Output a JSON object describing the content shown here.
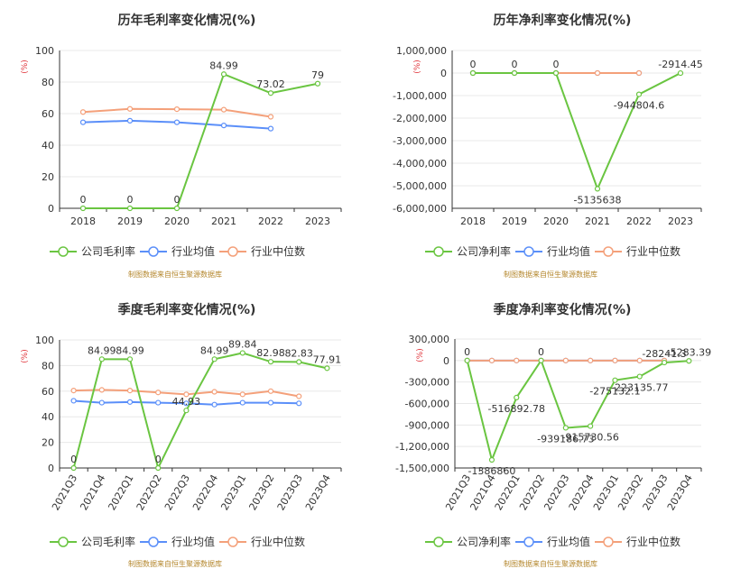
{
  "colors": {
    "company": "#6ac541",
    "industry_avg": "#5b8ff9",
    "industry_median": "#f4a07a",
    "axis_unit": "#e0343a",
    "source": "#b4872d",
    "grid": "#e8e8e8",
    "text": "#333333"
  },
  "legend_labels": {
    "gross": [
      "公司毛利率",
      "行业均值",
      "行业中位数"
    ],
    "net": [
      "公司净利率",
      "行业均值",
      "行业中位数"
    ]
  },
  "source_note": "制图数据来自恒生聚源数据库",
  "chart_data": [
    {
      "type": "line",
      "title": "历年毛利率变化情况(%)",
      "unit_label": "(%)",
      "categories": [
        "2018",
        "2019",
        "2020",
        "2021",
        "2022",
        "2023"
      ],
      "ylim": [
        0,
        100
      ],
      "yticks": [
        0,
        20,
        40,
        60,
        80,
        100
      ],
      "ytick_labels": [
        "0",
        "20",
        "40",
        "60",
        "80",
        "100"
      ],
      "rotate_x_labels": false,
      "series": [
        {
          "name": "公司毛利率",
          "values": [
            0,
            0,
            0,
            84.99,
            73.02,
            79
          ],
          "labels": [
            "0",
            "0",
            "0",
            "84.99",
            "73.02",
            "79"
          ]
        },
        {
          "name": "行业均值",
          "values": [
            54.5,
            55.5,
            54.5,
            52.5,
            50.5,
            null
          ]
        },
        {
          "name": "行业中位数",
          "values": [
            61,
            63,
            62.8,
            62.5,
            58,
            null
          ]
        }
      ]
    },
    {
      "type": "line",
      "title": "历年净利率变化情况(%)",
      "unit_label": "(%)",
      "categories": [
        "2018",
        "2019",
        "2020",
        "2021",
        "2022",
        "2023"
      ],
      "ylim": [
        -6000000,
        1000000
      ],
      "yticks": [
        -6000000,
        -5000000,
        -4000000,
        -3000000,
        -2000000,
        -1000000,
        0,
        1000000
      ],
      "ytick_labels": [
        "-6,000,000",
        "-5,000,000",
        "-4,000,000",
        "-3,000,000",
        "-2,000,000",
        "-1,000,000",
        "0",
        "1,000,000"
      ],
      "rotate_x_labels": false,
      "series": [
        {
          "name": "公司净利率",
          "values": [
            0,
            0,
            0,
            -5135638,
            -944804.6,
            -2914.45
          ],
          "labels": [
            "0",
            "0",
            "0",
            "-5135638",
            "-944804.6",
            "-2914.45"
          ]
        },
        {
          "name": "行业均值",
          "values": [
            0,
            0,
            0,
            0,
            0,
            null
          ]
        },
        {
          "name": "行业中位数",
          "values": [
            0,
            0,
            0,
            0,
            0,
            null
          ]
        }
      ]
    },
    {
      "type": "line",
      "title": "季度毛利率变化情况(%)",
      "unit_label": "(%)",
      "categories": [
        "2021Q3",
        "2021Q4",
        "2022Q1",
        "2022Q2",
        "2022Q3",
        "2022Q4",
        "2023Q1",
        "2023Q2",
        "2023Q3",
        "2023Q4"
      ],
      "ylim": [
        0,
        100
      ],
      "yticks": [
        0,
        20,
        40,
        60,
        80,
        100
      ],
      "ytick_labels": [
        "0",
        "20",
        "40",
        "60",
        "80",
        "100"
      ],
      "rotate_x_labels": true,
      "series": [
        {
          "name": "公司毛利率",
          "values": [
            0,
            84.99,
            84.99,
            0,
            44.93,
            84.99,
            89.84,
            82.98,
            82.83,
            77.91
          ],
          "labels": [
            "0",
            "84.99",
            "84.99",
            "0",
            "44.93",
            "84.99",
            "89.84",
            "82.98",
            "82.83",
            "77.91"
          ]
        },
        {
          "name": "行业均值",
          "values": [
            52.5,
            51,
            51.5,
            51,
            50.5,
            49.5,
            51,
            51,
            50.5,
            null
          ]
        },
        {
          "name": "行业中位数",
          "values": [
            60.5,
            61,
            60.5,
            59,
            57.5,
            59.5,
            57.5,
            60,
            56,
            null
          ]
        }
      ]
    },
    {
      "type": "line",
      "title": "季度净利率变化情况(%)",
      "unit_label": "(%)",
      "categories": [
        "2021Q3",
        "2021Q4",
        "2022Q1",
        "2022Q2",
        "2022Q3",
        "2022Q4",
        "2023Q1",
        "2023Q2",
        "2023Q3",
        "2023Q4"
      ],
      "ylim": [
        -1500000,
        300000
      ],
      "yticks": [
        -1500000,
        -1200000,
        -900000,
        -600000,
        -300000,
        0,
        300000
      ],
      "ytick_labels": [
        "-1,500,000",
        "-1,200,000",
        "-900,000",
        "-600,000",
        "-300,000",
        "0",
        "300,000"
      ],
      "rotate_x_labels": true,
      "series": [
        {
          "name": "公司净利率",
          "values": [
            0,
            -1386860,
            -516892.78,
            0,
            -939186.73,
            -915730.56,
            -275132.1,
            -223135.77,
            -28241.3,
            -5283.39
          ],
          "labels": [
            "0",
            "-1386860",
            "-516892.78",
            "0",
            "-939186.73",
            "-915730.56",
            "-275132.1",
            "-223135.77",
            "-28241.3",
            "-5283.39"
          ]
        },
        {
          "name": "行业均值",
          "values": [
            0,
            0,
            0,
            0,
            0,
            0,
            0,
            0,
            0,
            null
          ]
        },
        {
          "name": "行业中位数",
          "values": [
            0,
            0,
            0,
            0,
            0,
            0,
            0,
            0,
            0,
            null
          ]
        }
      ]
    }
  ]
}
